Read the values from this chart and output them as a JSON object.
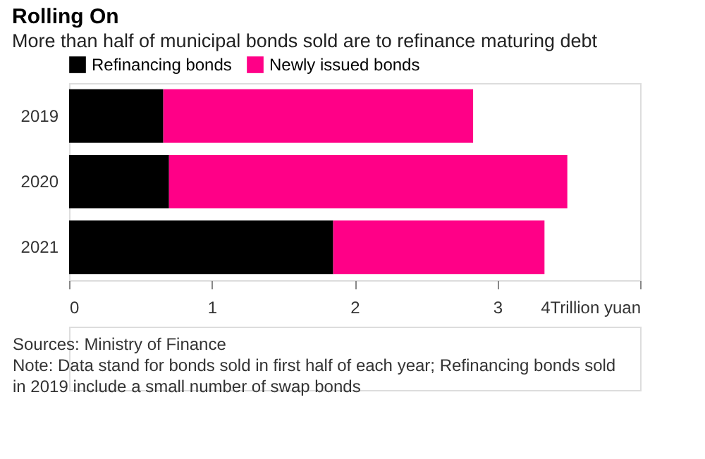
{
  "chart_data": {
    "type": "bar",
    "orientation": "horizontal",
    "stacked": true,
    "title": "Rolling On",
    "subtitle": "More than half of municipal bonds sold are to refinance maturing debt",
    "categories": [
      "2019",
      "2020",
      "2021"
    ],
    "series": [
      {
        "name": "Refinancing bonds",
        "color": "#000000",
        "values": [
          0.66,
          0.7,
          1.85
        ]
      },
      {
        "name": "Newly issued bonds",
        "color": "#ff0087",
        "values": [
          2.17,
          2.79,
          1.48
        ]
      }
    ],
    "xlim": [
      0,
      4
    ],
    "xticks": [
      0,
      1,
      2,
      3,
      {
        "value": 4,
        "label": "4Trillion yuan"
      }
    ],
    "grid": false,
    "legend": "top left",
    "annotations": [
      "Sources: Ministry of Finance",
      "Note: Data stand for bonds sold in first half of each year; Refinancing bonds sold in 2019 include a small number of swap bonds"
    ]
  }
}
